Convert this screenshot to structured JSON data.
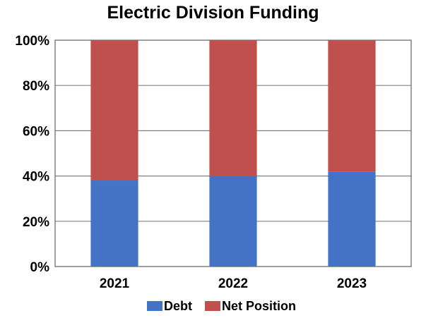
{
  "chart_data": {
    "type": "bar",
    "stacked": true,
    "percent_stacked": true,
    "title": "Electric Division Funding",
    "categories": [
      "2021",
      "2022",
      "2023"
    ],
    "series": [
      {
        "name": "Debt",
        "values": [
          38,
          40,
          42
        ],
        "color": "#4472c4"
      },
      {
        "name": "Net Position",
        "values": [
          62,
          60,
          58
        ],
        "color": "#c0504d"
      }
    ],
    "ylim": [
      0,
      100
    ],
    "yticks": [
      "0%",
      "20%",
      "40%",
      "60%",
      "80%",
      "100%"
    ],
    "grid": true,
    "legend_position": "bottom"
  }
}
